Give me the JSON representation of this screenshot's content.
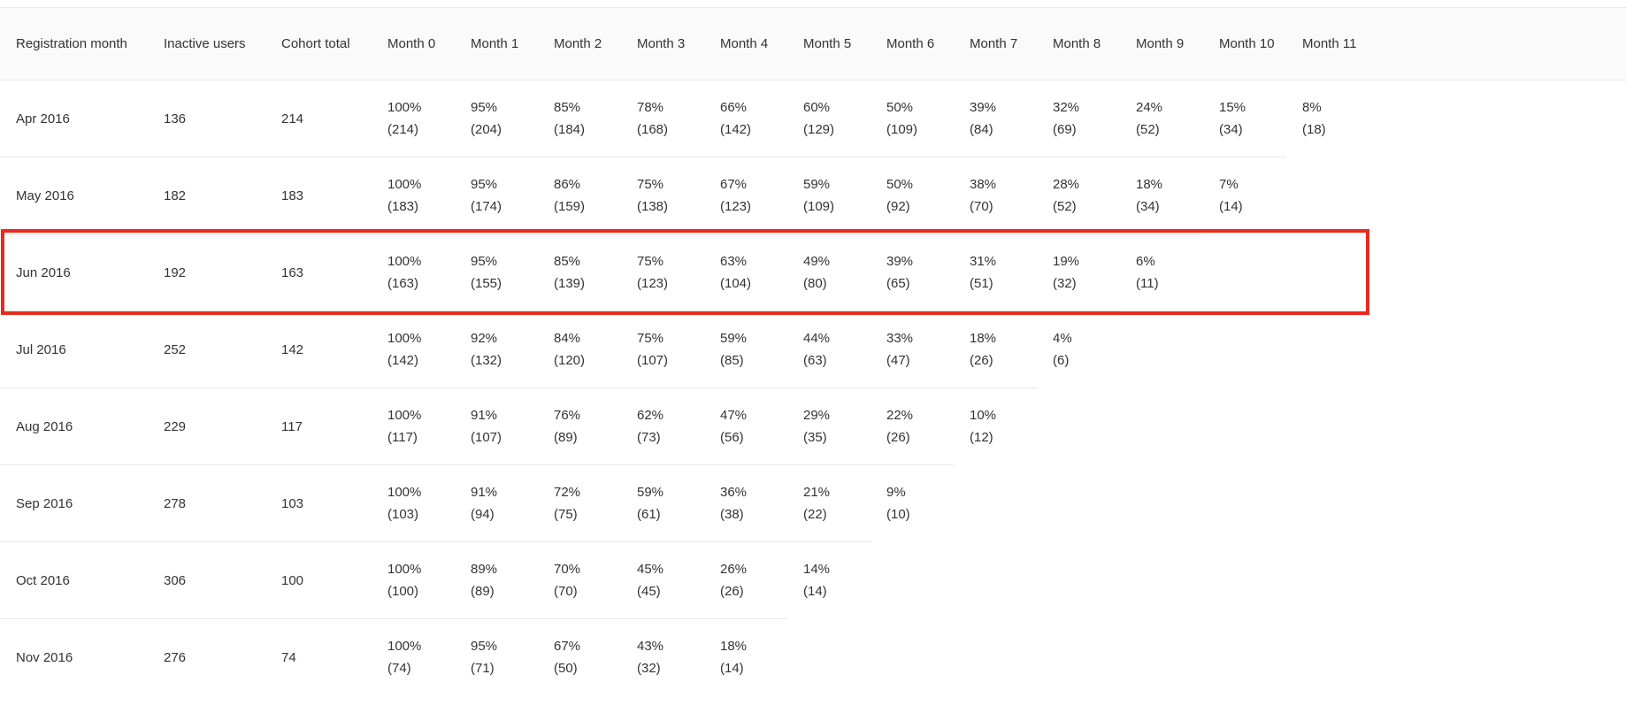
{
  "page": {
    "title": "Cohort analysis table"
  },
  "colors": {
    "header_bg": "#fafafa",
    "row_border": "#e7e7e7",
    "text": "#333333",
    "highlight_border": "#ea2a1c"
  },
  "table": {
    "headers": [
      "Registration month",
      "Inactive users",
      "Cohort total",
      "Month 0",
      "Month 1",
      "Month 2",
      "Month 3",
      "Month 4",
      "Month 5",
      "Month 6",
      "Month 7",
      "Month 8",
      "Month 9",
      "Month 10",
      "Month 11"
    ],
    "rows": [
      {
        "registration_month": "Apr 2016",
        "inactive_users": "136",
        "cohort_total": "214",
        "highlighted": false,
        "months": [
          [
            "100%",
            "(214)"
          ],
          [
            "95%",
            "(204)"
          ],
          [
            "85%",
            "(184)"
          ],
          [
            "78%",
            "(168)"
          ],
          [
            "66%",
            "(142)"
          ],
          [
            "60%",
            "(129)"
          ],
          [
            "50%",
            "(109)"
          ],
          [
            "39%",
            "(84)"
          ],
          [
            "32%",
            "(69)"
          ],
          [
            "24%",
            "(52)"
          ],
          [
            "15%",
            "(34)"
          ],
          [
            "8%",
            "(18)"
          ]
        ]
      },
      {
        "registration_month": "May 2016",
        "inactive_users": "182",
        "cohort_total": "183",
        "highlighted": false,
        "months": [
          [
            "100%",
            "(183)"
          ],
          [
            "95%",
            "(174)"
          ],
          [
            "86%",
            "(159)"
          ],
          [
            "75%",
            "(138)"
          ],
          [
            "67%",
            "(123)"
          ],
          [
            "59%",
            "(109)"
          ],
          [
            "50%",
            "(92)"
          ],
          [
            "38%",
            "(70)"
          ],
          [
            "28%",
            "(52)"
          ],
          [
            "18%",
            "(34)"
          ],
          [
            "7%",
            "(14)"
          ],
          null
        ]
      },
      {
        "registration_month": "Jun 2016",
        "inactive_users": "192",
        "cohort_total": "163",
        "highlighted": true,
        "months": [
          [
            "100%",
            "(163)"
          ],
          [
            "95%",
            "(155)"
          ],
          [
            "85%",
            "(139)"
          ],
          [
            "75%",
            "(123)"
          ],
          [
            "63%",
            "(104)"
          ],
          [
            "49%",
            "(80)"
          ],
          [
            "39%",
            "(65)"
          ],
          [
            "31%",
            "(51)"
          ],
          [
            "19%",
            "(32)"
          ],
          [
            "6%",
            "(11)"
          ],
          null,
          null
        ]
      },
      {
        "registration_month": "Jul 2016",
        "inactive_users": "252",
        "cohort_total": "142",
        "highlighted": false,
        "months": [
          [
            "100%",
            "(142)"
          ],
          [
            "92%",
            "(132)"
          ],
          [
            "84%",
            "(120)"
          ],
          [
            "75%",
            "(107)"
          ],
          [
            "59%",
            "(85)"
          ],
          [
            "44%",
            "(63)"
          ],
          [
            "33%",
            "(47)"
          ],
          [
            "18%",
            "(26)"
          ],
          [
            "4%",
            "(6)"
          ],
          null,
          null,
          null
        ]
      },
      {
        "registration_month": "Aug 2016",
        "inactive_users": "229",
        "cohort_total": "117",
        "highlighted": false,
        "months": [
          [
            "100%",
            "(117)"
          ],
          [
            "91%",
            "(107)"
          ],
          [
            "76%",
            "(89)"
          ],
          [
            "62%",
            "(73)"
          ],
          [
            "47%",
            "(56)"
          ],
          [
            "29%",
            "(35)"
          ],
          [
            "22%",
            "(26)"
          ],
          [
            "10%",
            "(12)"
          ],
          null,
          null,
          null,
          null
        ]
      },
      {
        "registration_month": "Sep 2016",
        "inactive_users": "278",
        "cohort_total": "103",
        "highlighted": false,
        "months": [
          [
            "100%",
            "(103)"
          ],
          [
            "91%",
            "(94)"
          ],
          [
            "72%",
            "(75)"
          ],
          [
            "59%",
            "(61)"
          ],
          [
            "36%",
            "(38)"
          ],
          [
            "21%",
            "(22)"
          ],
          [
            "9%",
            "(10)"
          ],
          null,
          null,
          null,
          null,
          null
        ]
      },
      {
        "registration_month": "Oct 2016",
        "inactive_users": "306",
        "cohort_total": "100",
        "highlighted": false,
        "months": [
          [
            "100%",
            "(100)"
          ],
          [
            "89%",
            "(89)"
          ],
          [
            "70%",
            "(70)"
          ],
          [
            "45%",
            "(45)"
          ],
          [
            "26%",
            "(26)"
          ],
          [
            "14%",
            "(14)"
          ],
          null,
          null,
          null,
          null,
          null,
          null
        ]
      },
      {
        "registration_month": "Nov 2016",
        "inactive_users": "276",
        "cohort_total": "74",
        "highlighted": false,
        "months": [
          [
            "100%",
            "(74)"
          ],
          [
            "95%",
            "(71)"
          ],
          [
            "67%",
            "(50)"
          ],
          [
            "43%",
            "(32)"
          ],
          [
            "18%",
            "(14)"
          ],
          null,
          null,
          null,
          null,
          null,
          null,
          null
        ]
      }
    ]
  }
}
